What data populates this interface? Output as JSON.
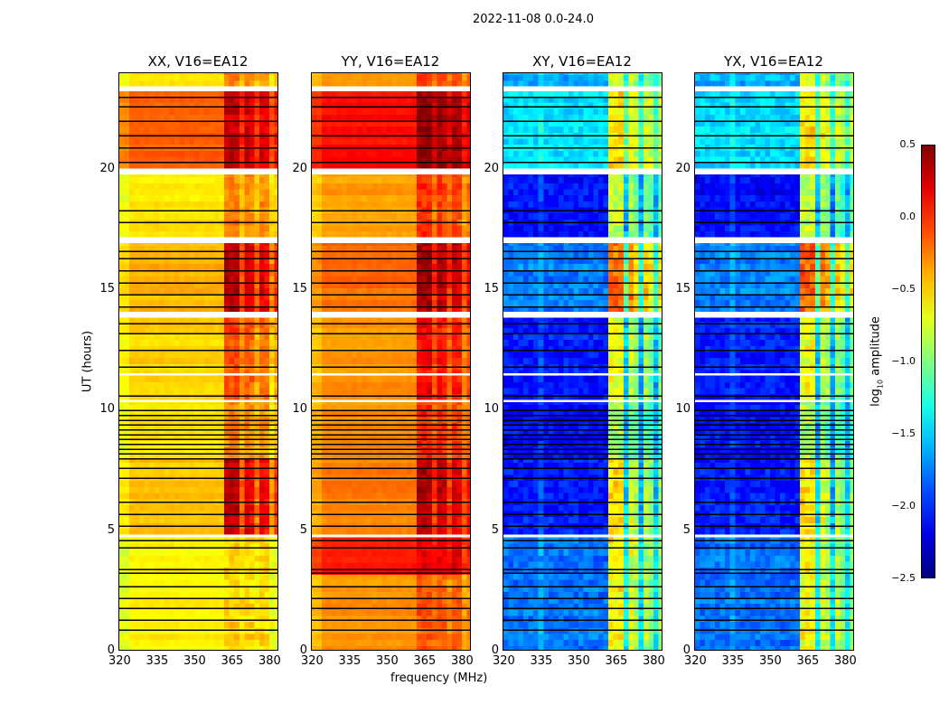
{
  "chart_data": {
    "type": "heatmap",
    "suptitle": "2022-11-08 0.0-24.0",
    "xlabel": "frequency (MHz)",
    "ylabel": "UT (hours)",
    "xlim": [
      320,
      384
    ],
    "ylim": [
      0,
      24
    ],
    "xticks": [
      "320",
      "335",
      "350",
      "365",
      "380"
    ],
    "xtick_values": [
      320,
      335,
      350,
      365,
      380
    ],
    "yticks": [
      "0",
      "5",
      "10",
      "15",
      "20"
    ],
    "ytick_values": [
      0,
      5,
      10,
      15,
      20
    ],
    "colorbar": {
      "label_main": "log",
      "label_sub": "10",
      "label_rest": " amplitude",
      "range": [
        -2.5,
        0.5
      ],
      "ticks": [
        "0.5",
        "0.0",
        "−0.5",
        "−1.0",
        "−1.5",
        "−2.0",
        "−2.5"
      ],
      "tick_values": [
        0.5,
        0.0,
        -0.5,
        -1.0,
        -1.5,
        -2.0,
        -2.5
      ],
      "colormap": "jet"
    },
    "rfi_band_mhz": [
      362,
      383
    ],
    "gaps_hours": [
      [
        4.75,
        4.85
      ],
      [
        10.35,
        10.45
      ],
      [
        11.45,
        11.55
      ],
      [
        13.85,
        14.1
      ],
      [
        16.95,
        17.2
      ],
      [
        19.8,
        20.05
      ],
      [
        23.25,
        23.45
      ]
    ],
    "flag_lines_hours": [
      0.9,
      1.3,
      1.8,
      2.2,
      2.7,
      3.25,
      3.4,
      4.3,
      4.6,
      5.2,
      5.7,
      6.2,
      7.2,
      7.6,
      8.0,
      8.2,
      8.4,
      8.6,
      8.8,
      9.0,
      9.2,
      9.4,
      9.6,
      9.8,
      10.0,
      10.6,
      11.8,
      12.5,
      13.2,
      13.6,
      14.3,
      14.8,
      15.3,
      15.8,
      16.3,
      16.6,
      17.8,
      18.3,
      20.3,
      20.9,
      21.4,
      22.0,
      22.6,
      23.0
    ],
    "panels": [
      {
        "title": "XX, V16=EA12",
        "kind": "auto",
        "segments": [
          [
            0,
            4.75,
            -0.6,
            0.1
          ],
          [
            4.85,
            8.0,
            -0.45,
            0.75
          ],
          [
            8.0,
            10.35,
            -0.55,
            0.3
          ],
          [
            10.45,
            13.85,
            -0.5,
            0.4
          ],
          [
            14.1,
            16.95,
            -0.4,
            0.75
          ],
          [
            17.2,
            19.8,
            -0.55,
            0.3
          ],
          [
            20.05,
            23.25,
            -0.15,
            0.45
          ],
          [
            23.45,
            24,
            -0.5,
            0.3
          ]
        ]
      },
      {
        "title": "YY, V16=EA12",
        "kind": "auto",
        "segments": [
          [
            0,
            3.2,
            -0.3,
            0.2
          ],
          [
            3.2,
            4.75,
            0.05,
            0.15
          ],
          [
            4.85,
            8.0,
            -0.25,
            0.6
          ],
          [
            8.0,
            10.35,
            -0.3,
            0.3
          ],
          [
            10.45,
            13.85,
            -0.3,
            0.45
          ],
          [
            14.1,
            16.95,
            -0.2,
            0.6
          ],
          [
            17.2,
            19.8,
            -0.35,
            0.35
          ],
          [
            20.05,
            23.25,
            0.1,
            0.35
          ],
          [
            23.45,
            24,
            -0.3,
            0.3
          ]
        ]
      },
      {
        "title": "XY, V16=EA12",
        "kind": "cross",
        "segments": [
          [
            0,
            4.75,
            -1.8,
            1.15
          ],
          [
            4.85,
            8.0,
            -2.05,
            1.5
          ],
          [
            8.0,
            10.35,
            -2.1,
            1.2
          ],
          [
            10.45,
            13.85,
            -2.05,
            1.4
          ],
          [
            14.1,
            16.95,
            -1.75,
            1.6
          ],
          [
            17.2,
            19.8,
            -2.1,
            1.3
          ],
          [
            20.05,
            23.25,
            -1.45,
            0.9
          ],
          [
            23.45,
            24,
            -1.6,
            0.9
          ]
        ]
      },
      {
        "title": "YX, V16=EA12",
        "kind": "cross",
        "segments": [
          [
            0,
            4.75,
            -1.8,
            1.15
          ],
          [
            4.85,
            8.0,
            -2.05,
            1.5
          ],
          [
            8.0,
            10.35,
            -2.1,
            1.2
          ],
          [
            10.45,
            13.85,
            -2.05,
            1.4
          ],
          [
            14.1,
            16.95,
            -1.75,
            1.6
          ],
          [
            17.2,
            19.8,
            -2.1,
            1.3
          ],
          [
            20.05,
            23.25,
            -1.45,
            0.9
          ],
          [
            23.45,
            24,
            -1.6,
            0.9
          ]
        ]
      }
    ]
  }
}
